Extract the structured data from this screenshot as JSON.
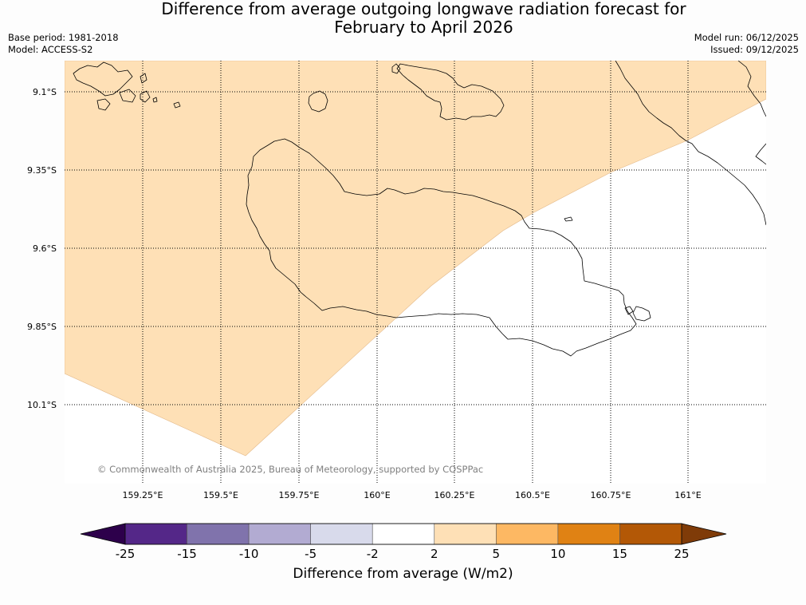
{
  "title": {
    "line1": "Difference from average outgoing longwave radiation forecast for",
    "line2": "February to April 2026"
  },
  "meta": {
    "base_period": "Base period: 1981-2018",
    "model": "Model: ACCESS-S2",
    "model_run": "Model run: 06/12/2025",
    "issued": "Issued: 09/12/2025"
  },
  "map": {
    "lat_labels": [
      "9.1°S",
      "9.35°S",
      "9.6°S",
      "9.85°S",
      "10.1°S"
    ],
    "lon_labels": [
      "159.25°E",
      "159.5°E",
      "159.75°E",
      "160°E",
      "160.25°E",
      "160.5°E",
      "160.75°E",
      "161°E"
    ],
    "copyright": "© Commonwealth of Australia 2025, Bureau of Meteorology, supported by COSPPac",
    "anomaly_category": "2 to 5"
  },
  "colorbar": {
    "label": "Difference from average (W/m2)",
    "ticks": [
      "-25",
      "-15",
      "-10",
      "-5",
      "-2",
      "2",
      "5",
      "10",
      "15",
      "25"
    ],
    "colors": {
      "below_min": "#2d004b",
      "bins": [
        "#542788",
        "#8073ac",
        "#b2abd2",
        "#d8daeb",
        "#ffffff",
        "#fee0b6",
        "#fdb863",
        "#e08214",
        "#b35806"
      ],
      "above_max": "#7f3b08"
    }
  }
}
